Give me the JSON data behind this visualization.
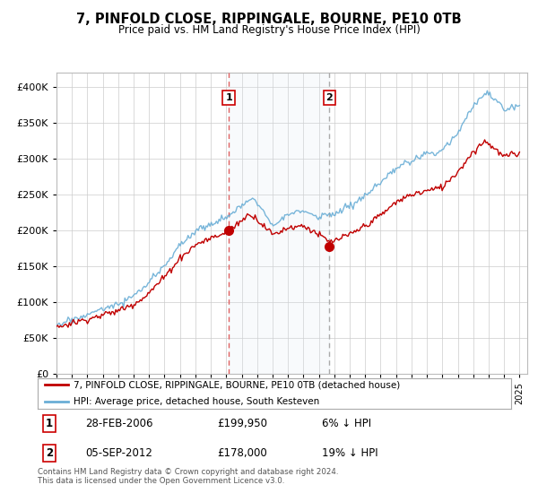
{
  "title": "7, PINFOLD CLOSE, RIPPINGALE, BOURNE, PE10 0TB",
  "subtitle": "Price paid vs. HM Land Registry's House Price Index (HPI)",
  "legend_line1": "7, PINFOLD CLOSE, RIPPINGALE, BOURNE, PE10 0TB (detached house)",
  "legend_line2": "HPI: Average price, detached house, South Kesteven",
  "annotation1_date": "28-FEB-2006",
  "annotation1_price": "£199,950",
  "annotation1_hpi": "6% ↓ HPI",
  "annotation2_date": "05-SEP-2012",
  "annotation2_price": "£178,000",
  "annotation2_hpi": "19% ↓ HPI",
  "footnote": "Contains HM Land Registry data © Crown copyright and database right 2024.\nThis data is licensed under the Open Government Licence v3.0.",
  "sale1_year": 2006.16,
  "sale1_value": 199950,
  "sale2_year": 2012.68,
  "sale2_value": 178000,
  "hpi_color": "#6aaed6",
  "price_color": "#c00000",
  "vline1_color": "#e06060",
  "vline2_color": "#aaaaaa",
  "shade_color": "#dce6f1",
  "grid_color": "#cccccc",
  "background_color": "#ffffff",
  "ylim": [
    0,
    420000
  ],
  "yticks": [
    0,
    50000,
    100000,
    150000,
    200000,
    250000,
    300000,
    350000,
    400000
  ],
  "xmin": 1995,
  "xmax": 2025.5
}
